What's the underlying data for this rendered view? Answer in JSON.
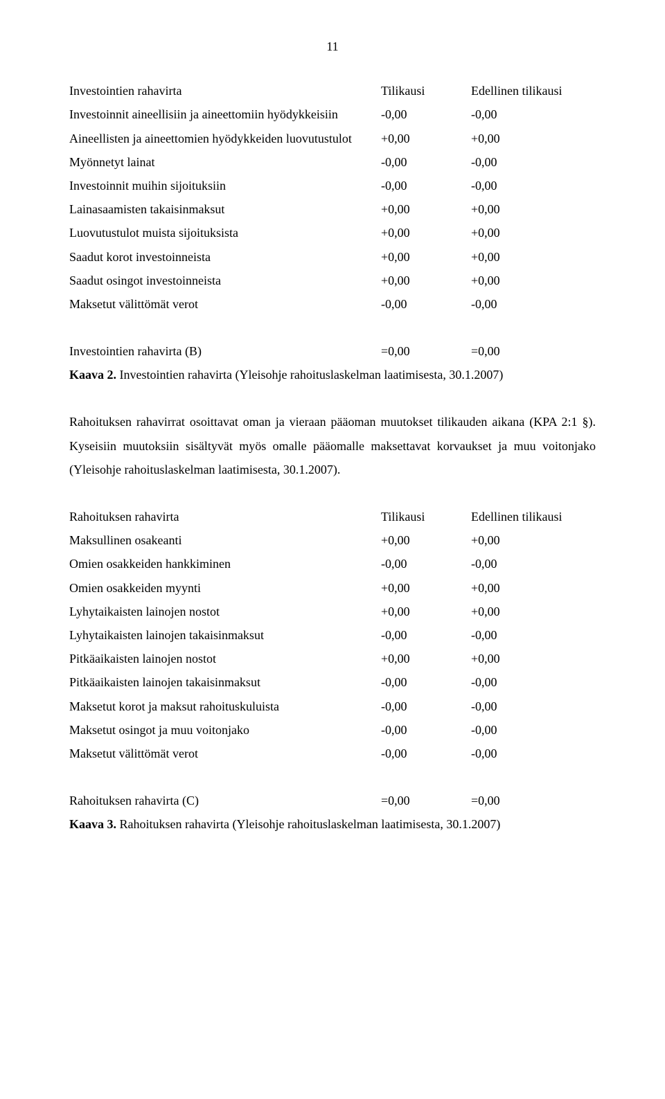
{
  "page_number": "11",
  "table1": {
    "header": {
      "label": "Investointien rahavirta",
      "col2": "Tilikausi",
      "col3": "Edellinen tilikausi"
    },
    "rows": [
      {
        "label": "Investoinnit aineellisiin ja aineettomiin hyödykkeisiin",
        "col2": "-0,00",
        "col3": "-0,00"
      },
      {
        "label": "Aineellisten ja aineettomien hyödykkeiden luovutustulot",
        "col2": "+0,00",
        "col3": "+0,00"
      },
      {
        "label": "Myönnetyt lainat",
        "col2": "-0,00",
        "col3": "-0,00"
      },
      {
        "label": "Investoinnit muihin sijoituksiin",
        "col2": "-0,00",
        "col3": "-0,00"
      },
      {
        "label": "Lainasaamisten takaisinmaksut",
        "col2": "+0,00",
        "col3": "+0,00"
      },
      {
        "label": "Luovutustulot muista sijoituksista",
        "col2": "+0,00",
        "col3": "+0,00"
      },
      {
        "label": "Saadut korot investoinneista",
        "col2": "+0,00",
        "col3": "+0,00"
      },
      {
        "label": "Saadut osingot investoinneista",
        "col2": "+0,00",
        "col3": "+0,00"
      },
      {
        "label": "Maksetut välittömät verot",
        "col2": "-0,00",
        "col3": "-0,00"
      }
    ],
    "result": {
      "label": "Investointien rahavirta (B)",
      "col2": "=0,00",
      "col3": "=0,00"
    }
  },
  "kaava2": {
    "bold": "Kaava 2.",
    "text": " Investointien rahavirta (Yleisohje rahoituslaskelman laatimisesta, 30.1.2007)"
  },
  "paragraph1": "Rahoituksen rahavirrat osoittavat oman ja vieraan pääoman muutokset tilikauden aikana (KPA 2:1 §). Kyseisiin muutoksiin sisältyvät myös omalle pääomalle maksettavat korvaukset ja muu voitonjako (Yleisohje rahoituslaskelman laatimisesta, 30.1.2007).",
  "table2": {
    "header": {
      "label": "Rahoituksen rahavirta",
      "col2": "Tilikausi",
      "col3": "Edellinen tilikausi"
    },
    "rows": [
      {
        "label": "Maksullinen osakeanti",
        "col2": "+0,00",
        "col3": "+0,00"
      },
      {
        "label": "Omien osakkeiden hankkiminen",
        "col2": "-0,00",
        "col3": "-0,00"
      },
      {
        "label": "Omien osakkeiden myynti",
        "col2": "+0,00",
        "col3": "+0,00"
      },
      {
        "label": "Lyhytaikaisten lainojen nostot",
        "col2": "+0,00",
        "col3": "+0,00"
      },
      {
        "label": "Lyhytaikaisten lainojen takaisinmaksut",
        "col2": "-0,00",
        "col3": "-0,00"
      },
      {
        "label": "Pitkäaikaisten lainojen nostot",
        "col2": "+0,00",
        "col3": "+0,00"
      },
      {
        "label": "Pitkäaikaisten lainojen takaisinmaksut",
        "col2": "-0,00",
        "col3": "-0,00"
      },
      {
        "label": "Maksetut korot ja maksut rahoituskuluista",
        "col2": "-0,00",
        "col3": "-0,00"
      },
      {
        "label": "Maksetut osingot ja muu voitonjako",
        "col2": "-0,00",
        "col3": "-0,00"
      },
      {
        "label": "Maksetut välittömät verot",
        "col2": "-0,00",
        "col3": "-0,00"
      }
    ],
    "result": {
      "label": "Rahoituksen rahavirta (C)",
      "col2": "=0,00",
      "col3": "=0,00"
    }
  },
  "kaava3": {
    "bold": "Kaava 3.",
    "text": " Rahoituksen rahavirta (Yleisohje rahoituslaskelman laatimisesta, 30.1.2007)"
  }
}
